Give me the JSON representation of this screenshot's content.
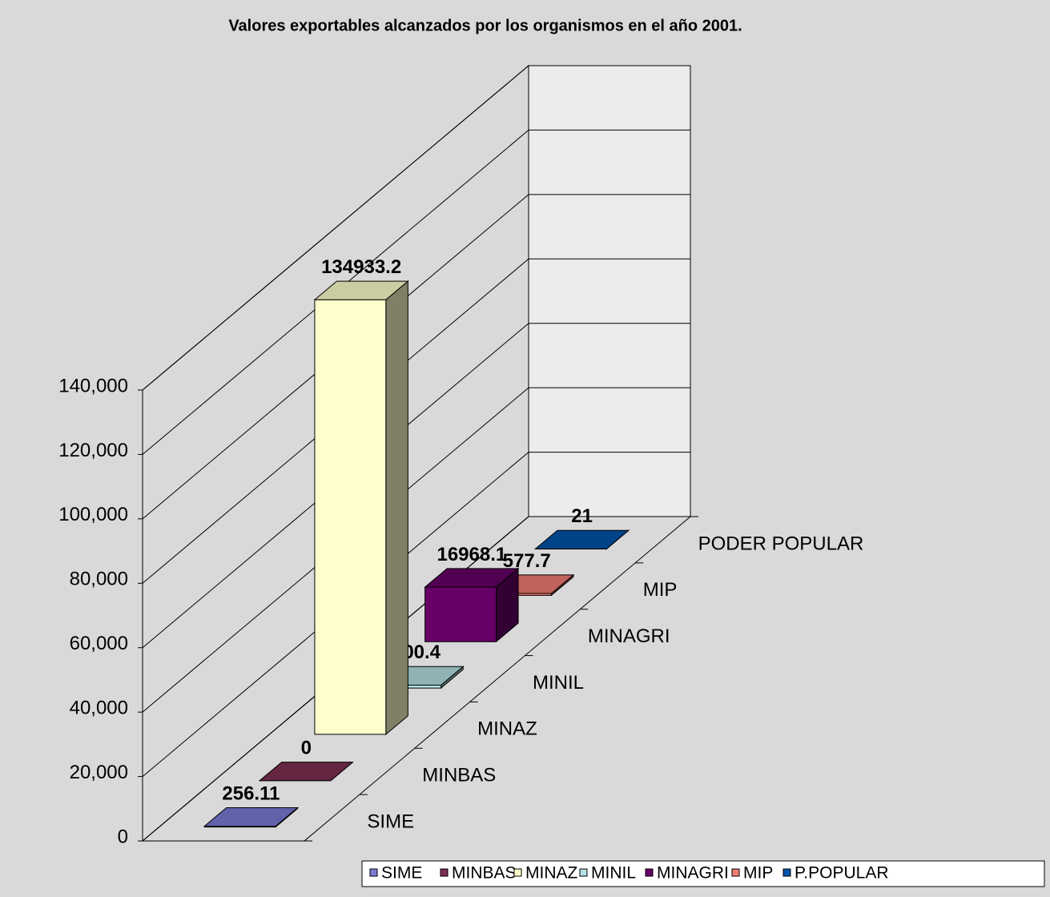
{
  "chart_data": {
    "type": "bar3d",
    "title": "Valores exportables alcanzados por los organismos en el año 2001.",
    "categories": [
      "SIME",
      "MINBAS",
      "MINAZ",
      "MINIL",
      "MINAGRI",
      "MIP",
      "PODER POPULAR"
    ],
    "values": [
      256.11,
      0,
      134933.2,
      900.4,
      16968.1,
      577.7,
      21
    ],
    "legend_names": [
      "SIME",
      "MINBAS",
      "MINAZ",
      "MINIL",
      "MINAGRI",
      "MIP",
      "P.POPULAR"
    ],
    "colors": [
      "#7b7bd6",
      "#7e2f52",
      "#ffffcc",
      "#b3e0e0",
      "#660066",
      "#f07c74",
      "#0055aa"
    ],
    "ylim": [
      0,
      140000
    ],
    "yticks": [
      0,
      {
        "value": 20000,
        "label": "20,000"
      },
      {
        "value": 40000,
        "label": "40,000"
      },
      {
        "value": 60000,
        "label": "60,000"
      },
      {
        "value": 80000,
        "label": "80,000"
      },
      {
        "value": 100000,
        "label": "100,000"
      },
      {
        "value": 120000,
        "label": "120,000"
      },
      {
        "value": 140000,
        "label": "140,000"
      }
    ],
    "grid": true
  }
}
